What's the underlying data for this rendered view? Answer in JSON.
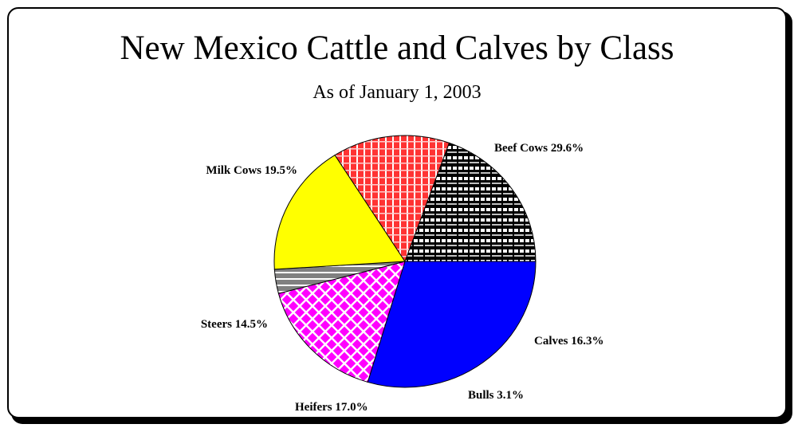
{
  "chart_data": {
    "type": "pie",
    "title": "New Mexico Cattle and Calves by Class",
    "subtitle": "As of January 1, 2003",
    "slices": [
      {
        "label": "Beef Cows 29.6%",
        "value": 29.6,
        "color": "#0000ff",
        "pattern": "solid"
      },
      {
        "label": "Calves 16.3%",
        "value": 16.3,
        "color": "#ff00ff",
        "pattern": "lattice"
      },
      {
        "label": "Bulls 3.1%",
        "value": 3.1,
        "color": "#808080",
        "pattern": "horizontal-stripes"
      },
      {
        "label": "Heifers 17.0%",
        "value": 17.0,
        "color": "#ffff00",
        "pattern": "solid"
      },
      {
        "label": "Steers 14.5%",
        "value": 14.5,
        "color": "#ff0000",
        "pattern": "grid"
      },
      {
        "label": "Milk Cows 19.5%",
        "value": 19.5,
        "color": "#000000",
        "pattern": "checker"
      }
    ]
  }
}
